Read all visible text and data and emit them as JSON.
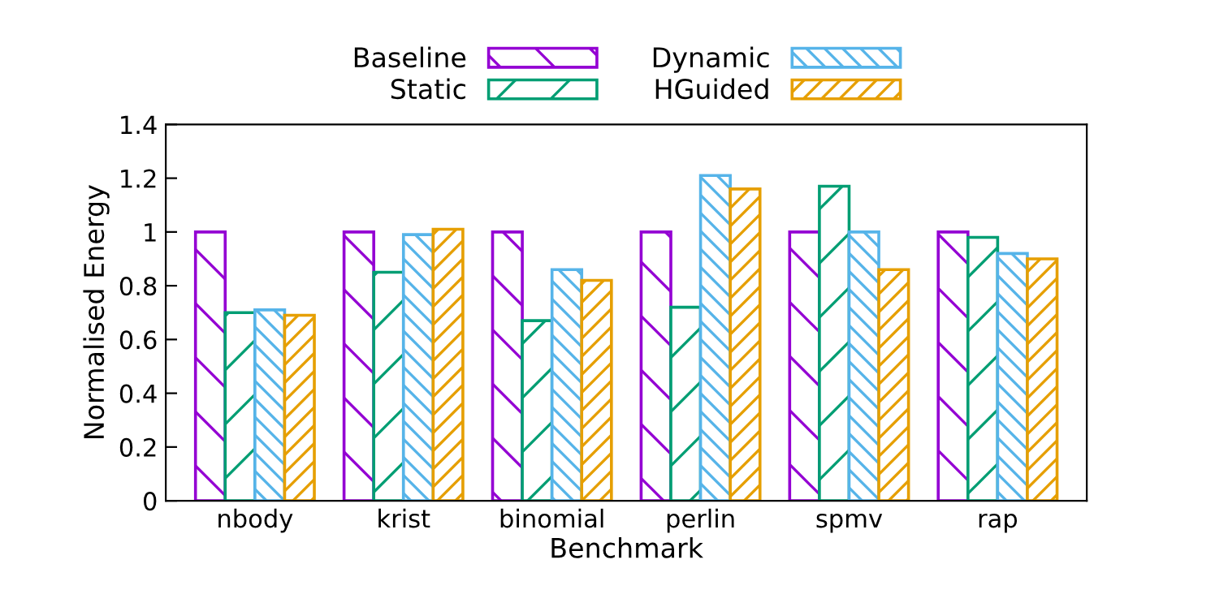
{
  "chart_data": {
    "type": "bar",
    "xlabel": "Benchmark",
    "ylabel": "Normalised Energy",
    "categories": [
      "nbody",
      "krist",
      "binomial",
      "perlin",
      "spmv",
      "rap"
    ],
    "series": [
      {
        "name": "Baseline",
        "color": "#9400d3",
        "values": [
          1,
          1,
          1,
          1,
          1,
          1
        ]
      },
      {
        "name": "Static",
        "color": "#009e73",
        "values": [
          0.7,
          0.85,
          0.67,
          0.72,
          1.17,
          0.98
        ]
      },
      {
        "name": "Dynamic",
        "color": "#56b4e9",
        "values": [
          0.71,
          0.99,
          0.86,
          1.21,
          1.0,
          0.92
        ]
      },
      {
        "name": "HGuided",
        "color": "#e69f00",
        "values": [
          0.69,
          1.01,
          0.82,
          1.16,
          0.86,
          0.9
        ]
      }
    ],
    "ylim": [
      0,
      1.4
    ],
    "yticks": [
      0,
      0.2,
      0.4,
      0.6,
      0.8,
      1,
      1.2,
      1.4
    ],
    "grid": false,
    "legend": "top"
  }
}
